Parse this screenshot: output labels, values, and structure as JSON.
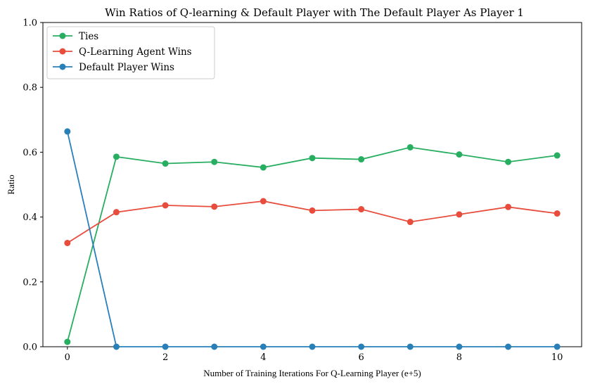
{
  "chart_data": {
    "type": "line",
    "title": "Win Ratios of Q-learning & Default Player with The Default Player As Player 1",
    "xlabel": "Number of Training Iterations For Q-Learning Player (e+5)",
    "ylabel": "Ratio",
    "xlim": [
      -0.5,
      10.5
    ],
    "ylim": [
      0,
      1
    ],
    "xticks": [
      0,
      2,
      4,
      6,
      8,
      10
    ],
    "yticks": [
      0.0,
      0.2,
      0.4,
      0.6,
      0.8,
      1.0
    ],
    "ytick_labels": [
      "0.0",
      "0.2",
      "0.4",
      "0.6",
      "0.8",
      "1.0"
    ],
    "grid": false,
    "legend_position": "top-left",
    "x": [
      0,
      1,
      2,
      3,
      4,
      5,
      6,
      7,
      8,
      9,
      10
    ],
    "series": [
      {
        "name": "Ties",
        "color": "#27ae60",
        "values": [
          0.015,
          0.586,
          0.565,
          0.57,
          0.553,
          0.582,
          0.578,
          0.615,
          0.593,
          0.57,
          0.59
        ]
      },
      {
        "name": "Q-Learning Agent Wins",
        "color": "#e74c3c",
        "values": [
          0.32,
          0.415,
          0.436,
          0.432,
          0.449,
          0.42,
          0.424,
          0.385,
          0.408,
          0.431,
          0.411
        ]
      },
      {
        "name": "Default Player Wins",
        "color": "#2980b9",
        "values": [
          0.664,
          0.0,
          0.0,
          0.0,
          0.0,
          0.0,
          0.0,
          0.0,
          0.0,
          0.0,
          0.0
        ]
      }
    ]
  }
}
